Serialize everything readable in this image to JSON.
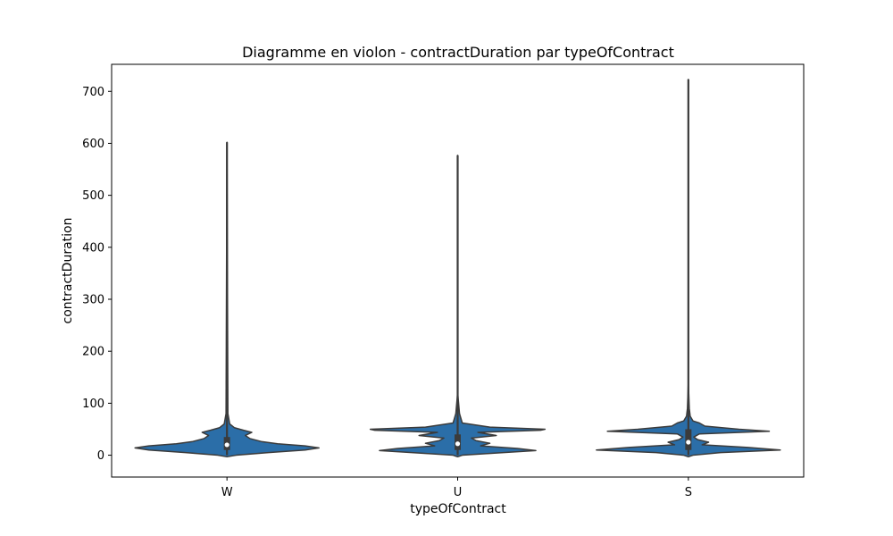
{
  "chart_data": {
    "type": "violin",
    "title": "Diagramme en violon - contractDuration par typeOfContract",
    "xlabel": "typeOfContract",
    "ylabel": "contractDuration",
    "ylim": [
      -42,
      752
    ],
    "yticks": [
      0,
      100,
      200,
      300,
      400,
      500,
      600,
      700
    ],
    "grid": false,
    "colors": {
      "fill": "#2b6ea8",
      "outline": "#3b3b3b",
      "median": "#ffffff"
    },
    "categories": [
      "W",
      "U",
      "S"
    ],
    "series": [
      {
        "category": "W",
        "min": 0,
        "q1": 10,
        "median": 20,
        "q3": 35,
        "max": 602,
        "density": [
          [
            -3,
            0.0
          ],
          [
            0,
            0.1
          ],
          [
            5,
            0.45
          ],
          [
            10,
            0.85
          ],
          [
            14,
            1.0
          ],
          [
            18,
            0.85
          ],
          [
            22,
            0.55
          ],
          [
            26,
            0.38
          ],
          [
            32,
            0.25
          ],
          [
            38,
            0.2
          ],
          [
            44,
            0.27
          ],
          [
            48,
            0.18
          ],
          [
            53,
            0.08
          ],
          [
            60,
            0.03
          ],
          [
            80,
            0.01
          ],
          [
            602,
            0.0
          ]
        ]
      },
      {
        "category": "U",
        "min": 0,
        "q1": 10,
        "median": 22,
        "q3": 40,
        "max": 577,
        "density": [
          [
            -3,
            0.0
          ],
          [
            0,
            0.05
          ],
          [
            4,
            0.4
          ],
          [
            9,
            0.85
          ],
          [
            13,
            0.65
          ],
          [
            18,
            0.25
          ],
          [
            23,
            0.35
          ],
          [
            28,
            0.2
          ],
          [
            33,
            0.15
          ],
          [
            38,
            0.42
          ],
          [
            44,
            0.22
          ],
          [
            48,
            0.9
          ],
          [
            50,
            0.95
          ],
          [
            54,
            0.35
          ],
          [
            62,
            0.05
          ],
          [
            80,
            0.02
          ],
          [
            120,
            0.0
          ],
          [
            577,
            0.0
          ]
        ]
      },
      {
        "category": "S",
        "min": 0,
        "q1": 10,
        "median": 25,
        "q3": 50,
        "max": 723,
        "density": [
          [
            -3,
            0.0
          ],
          [
            0,
            0.05
          ],
          [
            5,
            0.35
          ],
          [
            10,
            1.0
          ],
          [
            15,
            0.65
          ],
          [
            20,
            0.15
          ],
          [
            25,
            0.22
          ],
          [
            30,
            0.1
          ],
          [
            35,
            0.06
          ],
          [
            41,
            0.12
          ],
          [
            46,
            0.88
          ],
          [
            50,
            0.55
          ],
          [
            56,
            0.18
          ],
          [
            62,
            0.12
          ],
          [
            66,
            0.05
          ],
          [
            75,
            0.02
          ],
          [
            90,
            0.01
          ],
          [
            140,
            0.0
          ],
          [
            723,
            0.0
          ]
        ]
      }
    ]
  }
}
